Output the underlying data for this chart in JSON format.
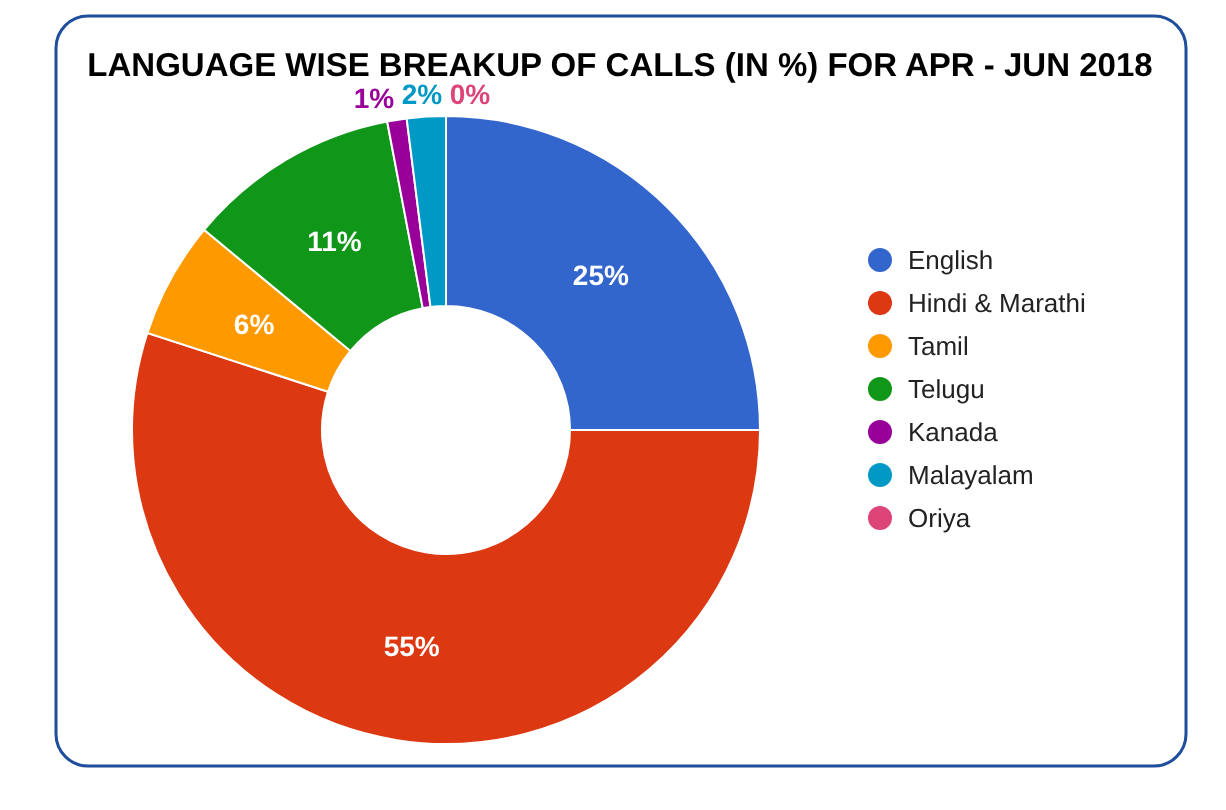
{
  "chart_data": {
    "type": "donut",
    "title": "LANGUAGE WISE BREAKUP OF CALLS (IN %) FOR APR - JUN 2018",
    "categories": [
      "English",
      "Hindi & Marathi",
      "Tamil",
      "Telugu",
      "Kanada",
      "Malayalam",
      "Oriya"
    ],
    "values": [
      25,
      55,
      6,
      11,
      1,
      2,
      0
    ],
    "colors": [
      "#3366cc",
      "#dc3912",
      "#ff9900",
      "#109618",
      "#990099",
      "#0099c6",
      "#dd4477"
    ],
    "value_labels": [
      "25%",
      "55%",
      "6%",
      "11%",
      "1%",
      "2%",
      "0%"
    ],
    "legend": "right"
  }
}
